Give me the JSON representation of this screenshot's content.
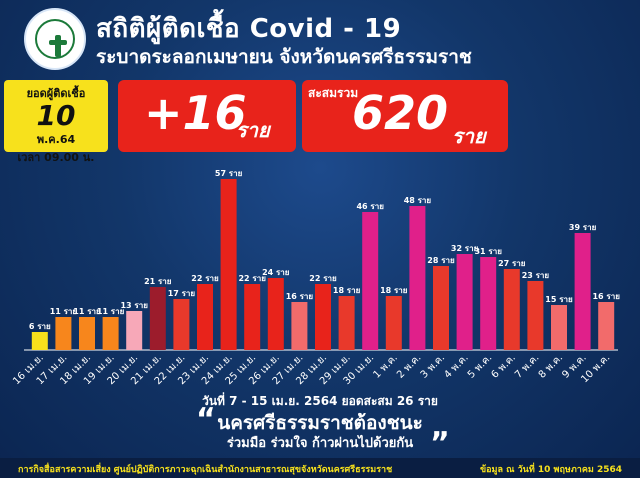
{
  "header": {
    "title": "สถิติผู้ติดเชื้อ Covid - 19",
    "subtitle": "ระบาดระลอกเมษายน จังหวัดนครศรีธรรมราช"
  },
  "daily": {
    "label": "ยอดผู้ติดเชื้อ",
    "day": "10",
    "date": "พ.ค.64",
    "time": "เวลา 09.00 น."
  },
  "new_cases": {
    "value": "+16",
    "unit": "ราย"
  },
  "total": {
    "label": "สะสมรวม",
    "value": "620",
    "unit": "ราย"
  },
  "chart_data": {
    "type": "bar",
    "categories": [
      "16 เม.ย.",
      "17 เม.ย.",
      "18 เม.ย.",
      "19 เม.ย.",
      "20 เม.ย.",
      "21 เม.ย.",
      "22 เม.ย.",
      "23 เม.ย.",
      "24 เม.ย.",
      "25 เม.ย.",
      "26 เม.ย.",
      "27 เม.ย.",
      "28 เม.ย.",
      "29 เม.ย.",
      "30 เม.ย.",
      "1 พ.ค.",
      "2 พ.ค.",
      "3 พ.ค.",
      "4 พ.ค.",
      "5 พ.ค.",
      "6 พ.ค.",
      "7 พ.ค.",
      "8 พ.ค.",
      "9 พ.ค.",
      "10 พ.ค."
    ],
    "values": [
      6,
      11,
      11,
      11,
      13,
      21,
      17,
      22,
      57,
      22,
      24,
      16,
      22,
      18,
      46,
      18,
      48,
      28,
      32,
      31,
      27,
      23,
      15,
      39,
      16
    ],
    "value_labels": [
      "6 ราย",
      "11 ราย",
      "11 ราย",
      "11 ราย",
      "13 ราย",
      "21 ราย",
      "17 ราย",
      "22 ราย",
      "57 ราย",
      "22 ราย",
      "24 ราย",
      "16 ราย",
      "22 ราย",
      "18 ราย",
      "46 ราย",
      "18 ราย",
      "48 ราย",
      "28 ราย",
      "32 ราย",
      "31 ราย",
      "27 ราย",
      "23 ราย",
      "15 ราย",
      "39 ราย",
      "16 ราย"
    ],
    "colors": [
      "#f7e11c",
      "#f7861c",
      "#f7861c",
      "#f7861c",
      "#f7a8b8",
      "#9c1c2c",
      "#e8392b",
      "#e8231b",
      "#e8231b",
      "#e8231b",
      "#e8231b",
      "#f26b6b",
      "#e8231b",
      "#e8392b",
      "#e0208a",
      "#e8392b",
      "#e0208a",
      "#e8392b",
      "#e0208a",
      "#e0208a",
      "#e8392b",
      "#e8392b",
      "#f26b6b",
      "#e0208a",
      "#f26b6b"
    ],
    "ylim": [
      0,
      60
    ]
  },
  "footnotes": {
    "line1": "วันที่ 7 - 15 เม.ย. 2564 ยอดสะสม 26 ราย",
    "line2": "นครศรีธรรมราชต้องชนะ",
    "line3": "ร่วมมือ ร่วมใจ ก้าวผ่านไปด้วยกัน",
    "quote_open": "“",
    "quote_close": "”"
  },
  "bottom": {
    "left": "การกิจสื่อสารความเสี่ยง ศูนย์ปฏิบัติการภาวะฉุกเฉินสำนักงานสาธารณสุขจังหวัดนครศรีธรรมราช",
    "right": "ข้อมูล ณ วันที่ 10 พฤษภาคม 2564"
  }
}
